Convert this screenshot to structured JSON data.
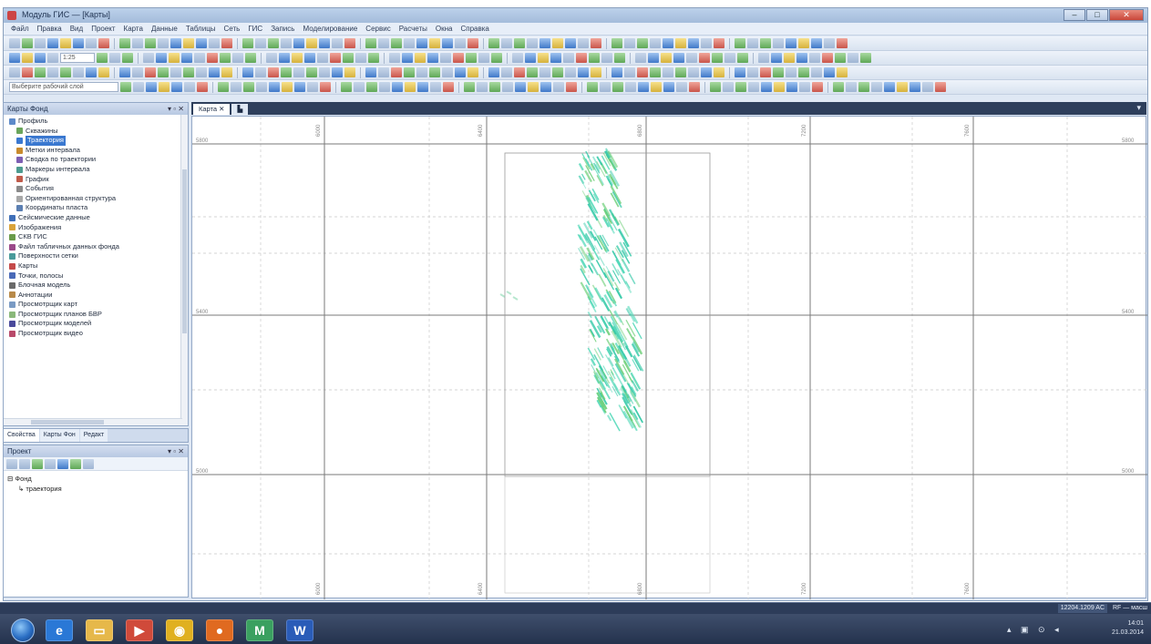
{
  "window": {
    "title": "Модуль ГИС — [Карты]",
    "controls": {
      "minimize": "–",
      "maximize": "□",
      "close": "✕"
    }
  },
  "menu": [
    "Файл",
    "Правка",
    "Вид",
    "Проект",
    "Карта",
    "Данные",
    "Таблицы",
    "Сеть",
    "ГИС",
    "Запись",
    "Моделирование",
    "Сервис",
    "Расчеты",
    "Окна",
    "Справка"
  ],
  "toolbar": {
    "scale_value": "1:25",
    "combo_layer": "Выберите рабочий слой"
  },
  "tree_panel": {
    "title": "Карты Фонд",
    "items": [
      {
        "label": "Профиль",
        "color": "#5d8ac9"
      },
      {
        "label": "Скважины",
        "color": "#6aa55c"
      },
      {
        "label": "Траектория",
        "color": "#3a78d0",
        "selected": true
      },
      {
        "label": "Метки интервала",
        "color": "#c98b2e"
      },
      {
        "label": "Сводка по траектории",
        "color": "#7d5fb3"
      },
      {
        "label": "Маркеры интервала",
        "color": "#4d9b8f"
      },
      {
        "label": "График",
        "color": "#c05b4a"
      },
      {
        "label": "События",
        "color": "#8a8a8a"
      },
      {
        "label": "Ориентированная структура",
        "color": "#a7a7a7"
      },
      {
        "label": "Координаты пласта",
        "color": "#5b7fb2"
      },
      {
        "label": "Сейсмические данные",
        "color": "#3f6fb8"
      },
      {
        "label": "Изображения",
        "color": "#d9a33a"
      },
      {
        "label": "СКВ ГИС",
        "color": "#6a9b4a"
      },
      {
        "label": "Файл табличных данных фонда",
        "color": "#9b4a8a"
      },
      {
        "label": "Поверхности сетки",
        "color": "#4a9b9b"
      },
      {
        "label": "Карты",
        "color": "#c44a4a"
      },
      {
        "label": "Точки, полосы",
        "color": "#4a6ab8"
      },
      {
        "label": "Блочная модель",
        "color": "#6a6a6a"
      },
      {
        "label": "Аннотации",
        "color": "#b88a4a"
      },
      {
        "label": "Просмотрщик карт",
        "color": "#7a9bc4"
      },
      {
        "label": "Просмотрщик планов БВР",
        "color": "#8ab87a"
      },
      {
        "label": "Просмотрщик моделей",
        "color": "#4a4a9b"
      },
      {
        "label": "Просмотрщик видео",
        "color": "#b84a6a"
      }
    ]
  },
  "panel_tabs": [
    {
      "label": "Свойства",
      "active": true
    },
    {
      "label": "Карты Фон",
      "active": false
    },
    {
      "label": "Редакт",
      "active": false
    }
  ],
  "props_panel": {
    "title": "Проект",
    "tree": [
      "Фонд",
      "траектория"
    ]
  },
  "doc_tabs": [
    {
      "label": "Карта",
      "active": true
    },
    {
      "label": "",
      "active": false
    }
  ],
  "map": {
    "x_labels": [
      "6000",
      "6400",
      "6800",
      "7200",
      "7600"
    ],
    "y_labels": [
      "5800",
      "5400",
      "5000"
    ]
  },
  "status": {
    "coordinates": "12204.1209 AC",
    "extra": "RF — масш"
  },
  "taskbar": {
    "apps": [
      {
        "name": "ie",
        "glyph": "e"
      },
      {
        "name": "explorer",
        "glyph": "▭"
      },
      {
        "name": "media",
        "glyph": "▶"
      },
      {
        "name": "chrome",
        "glyph": "◉"
      },
      {
        "name": "firefox",
        "glyph": "●"
      },
      {
        "name": "gis-app",
        "glyph": "M"
      },
      {
        "name": "word",
        "glyph": "W"
      }
    ],
    "clock_time": "14:01",
    "clock_date": "21.03.2014"
  }
}
